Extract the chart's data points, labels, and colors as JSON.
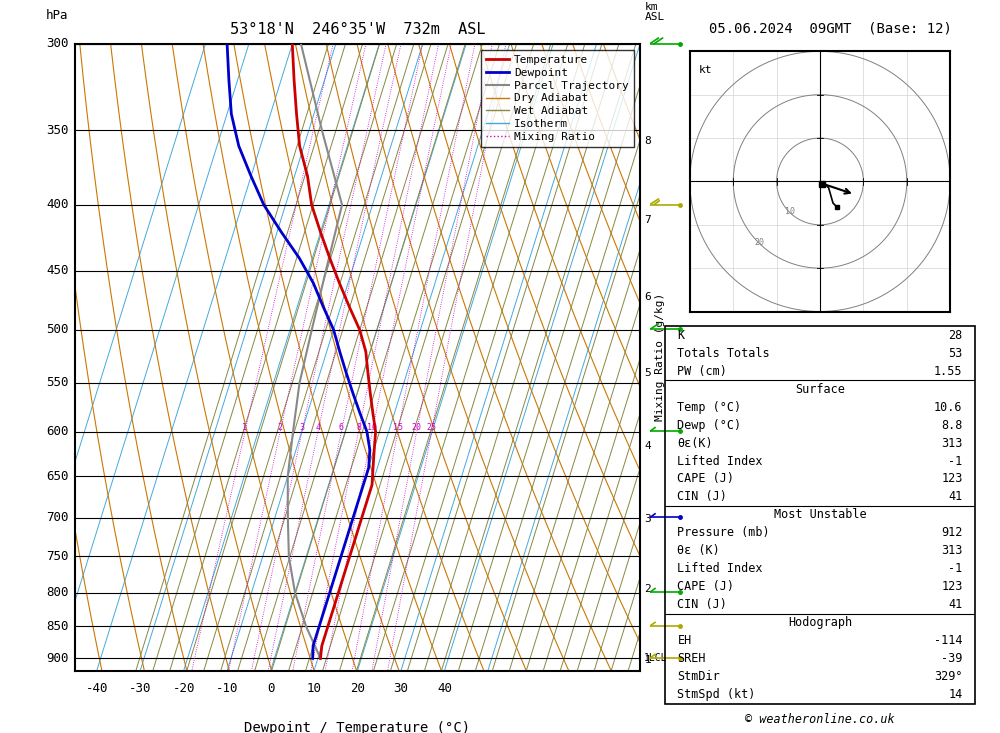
{
  "title_left": "53°18'N  246°35'W  732m  ASL",
  "title_right": "05.06.2024  09GMT  (Base: 12)",
  "xlabel": "Dewpoint / Temperature (°C)",
  "ylabel_left": "hPa",
  "pressure_levels": [
    300,
    350,
    400,
    450,
    500,
    550,
    600,
    650,
    700,
    750,
    800,
    850,
    900
  ],
  "temp_color": "#cc0000",
  "dewp_color": "#0000cc",
  "parcel_color": "#888888",
  "dry_adiabat_color": "#cc7700",
  "wet_adiabat_color": "#888844",
  "isotherm_color": "#44aadd",
  "mixing_ratio_color": "#cc00cc",
  "background_color": "#ffffff",
  "pmin": 300,
  "pmax": 920,
  "skew": 45,
  "T_base_min": -45,
  "T_base_max": 40,
  "mixing_ratio_values": [
    1,
    2,
    3,
    4,
    6,
    8,
    10,
    15,
    20,
    25
  ],
  "km_to_p": {
    "1": 902,
    "2": 795,
    "3": 701,
    "4": 616,
    "5": 540,
    "6": 472,
    "7": 411,
    "8": 357
  },
  "temp_profile_p": [
    300,
    320,
    340,
    360,
    380,
    400,
    420,
    440,
    460,
    480,
    500,
    520,
    540,
    560,
    580,
    600,
    620,
    640,
    660,
    680,
    700,
    720,
    740,
    760,
    780,
    800,
    820,
    840,
    860,
    880,
    900
  ],
  "temp_profile_T": [
    -40,
    -37,
    -34,
    -31,
    -27,
    -24,
    -20,
    -16,
    -12,
    -8,
    -4,
    -1,
    1,
    3,
    5,
    7,
    8,
    9,
    10,
    10,
    10,
    10,
    10,
    10,
    10,
    10,
    10,
    10,
    10,
    10,
    10.6
  ],
  "dewp_profile_p": [
    300,
    320,
    340,
    360,
    380,
    400,
    420,
    440,
    460,
    480,
    500,
    520,
    540,
    560,
    580,
    600,
    620,
    640,
    660,
    680,
    700,
    720,
    740,
    760,
    780,
    800,
    820,
    840,
    860,
    880,
    900
  ],
  "dewp_profile_T": [
    -55,
    -52,
    -49,
    -45,
    -40,
    -35,
    -29,
    -23,
    -18,
    -14,
    -10,
    -7,
    -4,
    -1,
    2,
    5,
    7,
    8,
    8,
    8,
    8,
    8,
    8,
    8,
    8,
    8,
    8,
    8,
    8,
    8,
    8.8
  ],
  "parcel_profile_p": [
    900,
    850,
    800,
    750,
    700,
    650,
    600,
    550,
    500,
    450,
    400,
    350,
    300
  ],
  "parcel_profile_T": [
    10.6,
    5,
    0,
    -4,
    -7,
    -10,
    -12,
    -14,
    -15,
    -16,
    -17,
    -27,
    -38
  ],
  "stats": {
    "K": "28",
    "Totals_Totals": "53",
    "PW_cm": "1.55",
    "Surface_Temp": "10.6",
    "Surface_Dewp": "8.8",
    "theta_e": "313",
    "Lifted_Index": "-1",
    "CAPE": "123",
    "CIN": "41",
    "MU_Pressure": "912",
    "MU_theta_e": "313",
    "MU_Lifted_Index": "-1",
    "MU_CAPE": "123",
    "MU_CIN": "41",
    "EH": "-114",
    "SREH": "-39",
    "StmDir": "329°",
    "StmSpd_kt": "14"
  },
  "wind_barbs": [
    {
      "p": 300,
      "spd": 20,
      "dir": 270,
      "color": "#00aa00"
    },
    {
      "p": 400,
      "spd": 15,
      "dir": 250,
      "color": "#aaaa00"
    },
    {
      "p": 500,
      "spd": 10,
      "dir": 240,
      "color": "#00aa00"
    },
    {
      "p": 600,
      "spd": 8,
      "dir": 230,
      "color": "#00aa00"
    },
    {
      "p": 700,
      "spd": 5,
      "dir": 220,
      "color": "#0000cc"
    },
    {
      "p": 800,
      "spd": 5,
      "dir": 200,
      "color": "#00aa00"
    },
    {
      "p": 850,
      "spd": 5,
      "dir": 190,
      "color": "#aaaa00"
    },
    {
      "p": 900,
      "spd": 5,
      "dir": 185,
      "color": "#aaaa00"
    }
  ]
}
